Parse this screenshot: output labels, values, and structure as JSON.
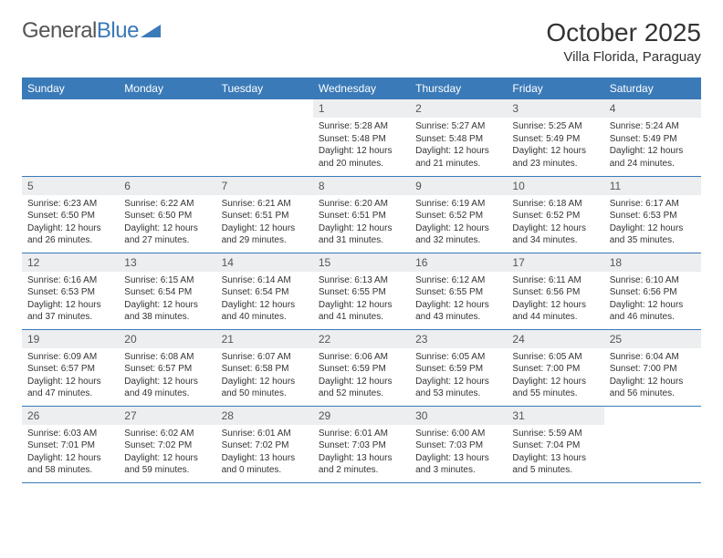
{
  "logo": {
    "text1": "General",
    "text2": "Blue"
  },
  "title": "October 2025",
  "location": "Villa Florida, Paraguay",
  "colors": {
    "header_bg": "#3a7ab8",
    "header_text": "#ffffff",
    "daynum_bg": "#eceef0",
    "row_border": "#3a7ab8",
    "body_text": "#333333",
    "logo_gray": "#555555",
    "logo_blue": "#3a7ab8",
    "page_bg": "#ffffff"
  },
  "fonts": {
    "title_size": 28,
    "location_size": 15,
    "logo_size": 24,
    "weekday_size": 12,
    "daynum_size": 12,
    "cell_size": 10
  },
  "weekdays": [
    "Sunday",
    "Monday",
    "Tuesday",
    "Wednesday",
    "Thursday",
    "Friday",
    "Saturday"
  ],
  "weeks": [
    [
      {
        "n": "",
        "sr": "",
        "ss": "",
        "dh": "",
        "dm": ""
      },
      {
        "n": "",
        "sr": "",
        "ss": "",
        "dh": "",
        "dm": ""
      },
      {
        "n": "",
        "sr": "",
        "ss": "",
        "dh": "",
        "dm": ""
      },
      {
        "n": "1",
        "sr": "5:28 AM",
        "ss": "5:48 PM",
        "dh": "12",
        "dm": "20"
      },
      {
        "n": "2",
        "sr": "5:27 AM",
        "ss": "5:48 PM",
        "dh": "12",
        "dm": "21"
      },
      {
        "n": "3",
        "sr": "5:25 AM",
        "ss": "5:49 PM",
        "dh": "12",
        "dm": "23"
      },
      {
        "n": "4",
        "sr": "5:24 AM",
        "ss": "5:49 PM",
        "dh": "12",
        "dm": "24"
      }
    ],
    [
      {
        "n": "5",
        "sr": "6:23 AM",
        "ss": "6:50 PM",
        "dh": "12",
        "dm": "26"
      },
      {
        "n": "6",
        "sr": "6:22 AM",
        "ss": "6:50 PM",
        "dh": "12",
        "dm": "27"
      },
      {
        "n": "7",
        "sr": "6:21 AM",
        "ss": "6:51 PM",
        "dh": "12",
        "dm": "29"
      },
      {
        "n": "8",
        "sr": "6:20 AM",
        "ss": "6:51 PM",
        "dh": "12",
        "dm": "31"
      },
      {
        "n": "9",
        "sr": "6:19 AM",
        "ss": "6:52 PM",
        "dh": "12",
        "dm": "32"
      },
      {
        "n": "10",
        "sr": "6:18 AM",
        "ss": "6:52 PM",
        "dh": "12",
        "dm": "34"
      },
      {
        "n": "11",
        "sr": "6:17 AM",
        "ss": "6:53 PM",
        "dh": "12",
        "dm": "35"
      }
    ],
    [
      {
        "n": "12",
        "sr": "6:16 AM",
        "ss": "6:53 PM",
        "dh": "12",
        "dm": "37"
      },
      {
        "n": "13",
        "sr": "6:15 AM",
        "ss": "6:54 PM",
        "dh": "12",
        "dm": "38"
      },
      {
        "n": "14",
        "sr": "6:14 AM",
        "ss": "6:54 PM",
        "dh": "12",
        "dm": "40"
      },
      {
        "n": "15",
        "sr": "6:13 AM",
        "ss": "6:55 PM",
        "dh": "12",
        "dm": "41"
      },
      {
        "n": "16",
        "sr": "6:12 AM",
        "ss": "6:55 PM",
        "dh": "12",
        "dm": "43"
      },
      {
        "n": "17",
        "sr": "6:11 AM",
        "ss": "6:56 PM",
        "dh": "12",
        "dm": "44"
      },
      {
        "n": "18",
        "sr": "6:10 AM",
        "ss": "6:56 PM",
        "dh": "12",
        "dm": "46"
      }
    ],
    [
      {
        "n": "19",
        "sr": "6:09 AM",
        "ss": "6:57 PM",
        "dh": "12",
        "dm": "47"
      },
      {
        "n": "20",
        "sr": "6:08 AM",
        "ss": "6:57 PM",
        "dh": "12",
        "dm": "49"
      },
      {
        "n": "21",
        "sr": "6:07 AM",
        "ss": "6:58 PM",
        "dh": "12",
        "dm": "50"
      },
      {
        "n": "22",
        "sr": "6:06 AM",
        "ss": "6:59 PM",
        "dh": "12",
        "dm": "52"
      },
      {
        "n": "23",
        "sr": "6:05 AM",
        "ss": "6:59 PM",
        "dh": "12",
        "dm": "53"
      },
      {
        "n": "24",
        "sr": "6:05 AM",
        "ss": "7:00 PM",
        "dh": "12",
        "dm": "55"
      },
      {
        "n": "25",
        "sr": "6:04 AM",
        "ss": "7:00 PM",
        "dh": "12",
        "dm": "56"
      }
    ],
    [
      {
        "n": "26",
        "sr": "6:03 AM",
        "ss": "7:01 PM",
        "dh": "12",
        "dm": "58"
      },
      {
        "n": "27",
        "sr": "6:02 AM",
        "ss": "7:02 PM",
        "dh": "12",
        "dm": "59"
      },
      {
        "n": "28",
        "sr": "6:01 AM",
        "ss": "7:02 PM",
        "dh": "13",
        "dm": "0"
      },
      {
        "n": "29",
        "sr": "6:01 AM",
        "ss": "7:03 PM",
        "dh": "13",
        "dm": "2"
      },
      {
        "n": "30",
        "sr": "6:00 AM",
        "ss": "7:03 PM",
        "dh": "13",
        "dm": "3"
      },
      {
        "n": "31",
        "sr": "5:59 AM",
        "ss": "7:04 PM",
        "dh": "13",
        "dm": "5"
      },
      {
        "n": "",
        "sr": "",
        "ss": "",
        "dh": "",
        "dm": ""
      }
    ]
  ]
}
